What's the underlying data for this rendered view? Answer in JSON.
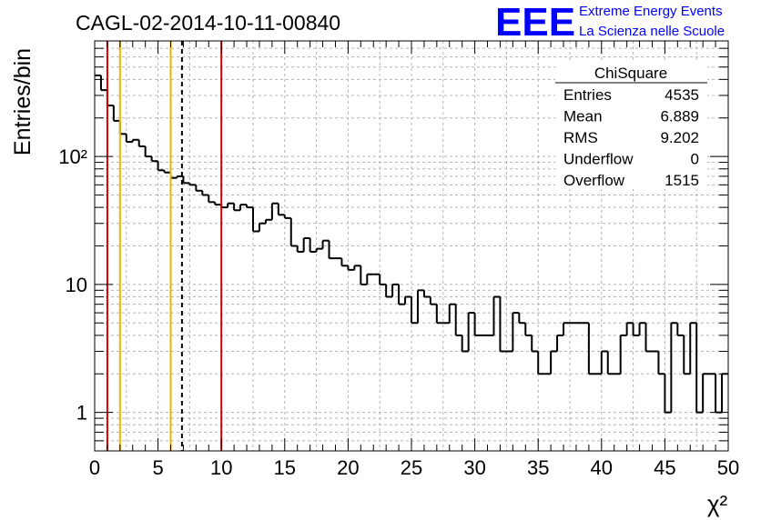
{
  "title": "CAGL-02-2014-10-11-00840",
  "logo": {
    "letters": "EEE",
    "line1": "Extreme Energy Events",
    "line2": "La Scienza nelle Scuole",
    "color": "#0000ff"
  },
  "stats_box": {
    "name": "ChiSquare",
    "rows": [
      {
        "label": "Entries",
        "value": "4535"
      },
      {
        "label": "Mean",
        "value": "6.889"
      },
      {
        "label": "RMS",
        "value": "9.202"
      },
      {
        "label": "Underflow",
        "value": "0"
      },
      {
        "label": "Overflow",
        "value": "1515"
      }
    ]
  },
  "chart_data": {
    "type": "histogram",
    "title": "CAGL-02-2014-10-11-00840",
    "xlabel": "χ²",
    "ylabel": "Entries/bin",
    "xlim": [
      0,
      50
    ],
    "ylim": [
      0.5,
      800
    ],
    "yscale": "log",
    "grid": true,
    "x_ticks": [
      0,
      5,
      10,
      15,
      20,
      25,
      30,
      35,
      40,
      45,
      50
    ],
    "y_tick_labels": [
      {
        "value": 1,
        "label": "1"
      },
      {
        "value": 10,
        "label": "10"
      },
      {
        "value": 100,
        "label": "10²"
      }
    ],
    "bin_width": 0.5,
    "bin_counts": [
      430,
      330,
      250,
      190,
      150,
      130,
      135,
      120,
      100,
      92,
      78,
      75,
      68,
      70,
      62,
      60,
      54,
      50,
      44,
      42,
      40,
      43,
      38,
      42,
      40,
      26,
      30,
      32,
      43,
      35,
      33,
      20,
      18,
      23,
      18,
      19,
      22,
      16,
      16,
      14,
      13,
      14,
      10,
      12,
      12,
      10,
      8,
      10,
      7,
      8,
      5,
      9,
      8,
      7,
      5,
      5,
      7,
      4,
      3,
      6,
      4,
      4,
      4,
      8,
      3,
      3,
      6,
      5,
      4,
      3,
      2,
      2,
      3,
      4,
      5,
      5,
      5,
      5,
      2,
      2,
      3,
      2,
      2,
      4,
      5,
      4,
      5,
      3,
      3,
      2,
      1,
      5,
      4,
      2,
      5,
      1,
      2,
      2,
      1,
      2
    ],
    "markers": [
      {
        "x": 1,
        "style": "solid",
        "color": "#d40000"
      },
      {
        "x": 2,
        "style": "solid",
        "color": "#f0b400"
      },
      {
        "x": 6,
        "style": "solid",
        "color": "#f0b400"
      },
      {
        "x": 6.889,
        "style": "dashed",
        "color": "#000000"
      },
      {
        "x": 10,
        "style": "solid",
        "color": "#d40000"
      }
    ]
  }
}
